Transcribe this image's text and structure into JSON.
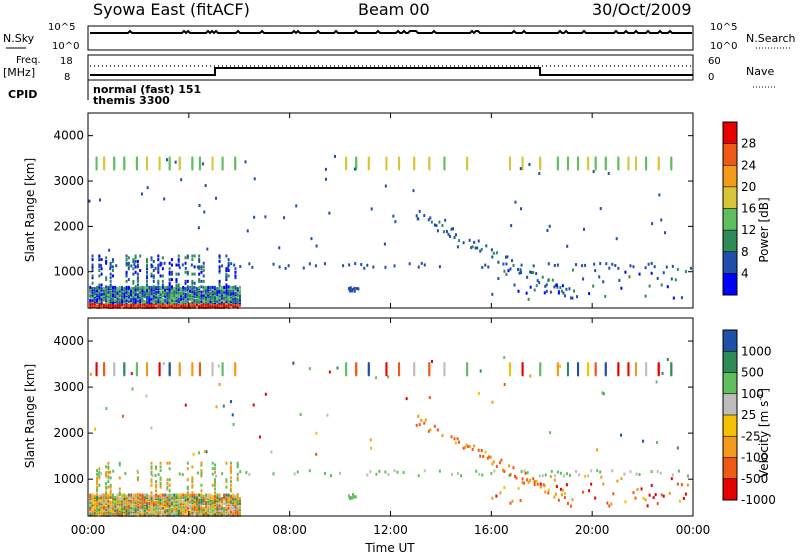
{
  "header": {
    "title": "Syowa East (fitACF)",
    "beam": "Beam 00",
    "date": "30/Oct/2009"
  },
  "sky_panel": {
    "left_label": "N.Sky",
    "right_label": "N.Search",
    "left_ticks": [
      "10^5",
      "10^0"
    ],
    "right_ticks": [
      "10^5",
      "10^0"
    ]
  },
  "freq_panel": {
    "left_label_1": "Freq.",
    "left_label_2": "[MHz]",
    "right_label": "Nave",
    "left_ticks": [
      "18",
      "8"
    ],
    "right_ticks": [
      "60",
      "0"
    ]
  },
  "cpid": {
    "label": "CPID",
    "line1": "normal (fast) 151",
    "line2": "themis 3300"
  },
  "colors": {
    "power": [
      "#0000ff",
      "#1f4fa8",
      "#2e8b57",
      "#5fbf5f",
      "#d9c43a",
      "#f39a1b",
      "#ee5a13",
      "#e80000"
    ],
    "velocity": [
      "#e80000",
      "#ee5a13",
      "#f39a1b",
      "#f5c000",
      "#bdbdbd",
      "#5fbf5f",
      "#2e8b57",
      "#1f4fa8"
    ]
  },
  "chart_data": [
    {
      "type": "heatmap",
      "name": "power",
      "ylabel": "Slant Range [km]",
      "yticks": [
        "1000",
        "2000",
        "3000",
        "4000"
      ],
      "ylim": [
        200,
        4500
      ],
      "xlim_hours": [
        0,
        24
      ],
      "colorbar_label": "Power [dB]",
      "colorbar_ticks": [
        "4",
        "8",
        "12",
        "16",
        "20",
        "24",
        "28"
      ],
      "colorbar_range": [
        0,
        32
      ]
    },
    {
      "type": "heatmap",
      "name": "velocity",
      "ylabel": "Slant Range [km]",
      "yticks": [
        "1000",
        "2000",
        "3000",
        "4000"
      ],
      "ylim": [
        200,
        4500
      ],
      "xlim_hours": [
        0,
        24
      ],
      "colorbar_label": "Velocity [m s",
      "colorbar_label_sup": "-1",
      "colorbar_label_end": "]",
      "colorbar_ticks": [
        "1000",
        "500",
        "100",
        "25",
        "-25",
        "-100",
        "-500",
        "-1000"
      ]
    }
  ],
  "time_axis": {
    "xlabel": "Time UT",
    "ticks": [
      "00:00",
      "04:00",
      "08:00",
      "12:00",
      "16:00",
      "20:00",
      "00:00"
    ]
  }
}
